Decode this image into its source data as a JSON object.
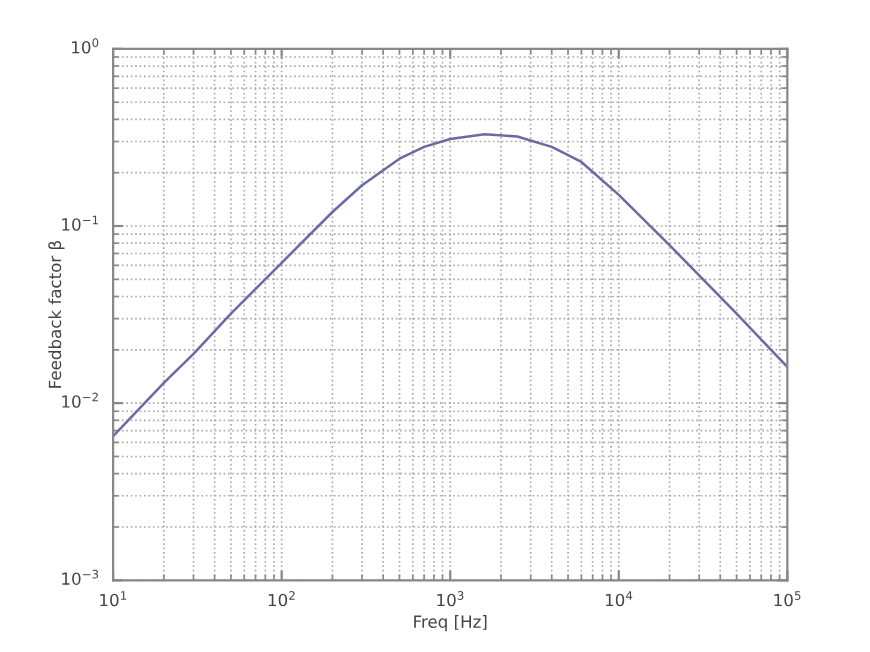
{
  "chart_data": {
    "type": "line",
    "xlabel": "Freq [Hz]",
    "ylabel": "Feedback factor β",
    "log": "xy",
    "grid": true,
    "marker": "none",
    "line_style": "solid",
    "xlim": [
      10,
      100000
    ],
    "ylim": [
      0.001,
      1
    ],
    "xticks": [
      {
        "value": 10,
        "label": "10$^{1}$"
      },
      {
        "value": 100,
        "label": "10$^{2}$"
      },
      {
        "value": 1000,
        "label": "10$^{3}$"
      },
      {
        "value": 10000,
        "label": "10$^{4}$"
      },
      {
        "value": 100000,
        "label": "10$^{5}$"
      }
    ],
    "yticks": [
      {
        "value": 0.001,
        "label": "10$^{−3}$"
      },
      {
        "value": 0.01,
        "label": "10$^{−2}$"
      },
      {
        "value": 0.1,
        "label": "10$^{−1}$"
      },
      {
        "value": 1,
        "label": "10$^{0}$"
      }
    ],
    "x": [
      10,
      20,
      30,
      50,
      100,
      200,
      300,
      500,
      700,
      1000,
      1600,
      2500,
      4000,
      6000,
      10000,
      20000,
      50000,
      100000
    ],
    "series": [
      {
        "color": "#6a6aa8",
        "values": [
          0.0065,
          0.013,
          0.019,
          0.032,
          0.062,
          0.12,
          0.17,
          0.24,
          0.28,
          0.31,
          0.33,
          0.32,
          0.28,
          0.23,
          0.15,
          0.078,
          0.032,
          0.016
        ]
      }
    ]
  }
}
